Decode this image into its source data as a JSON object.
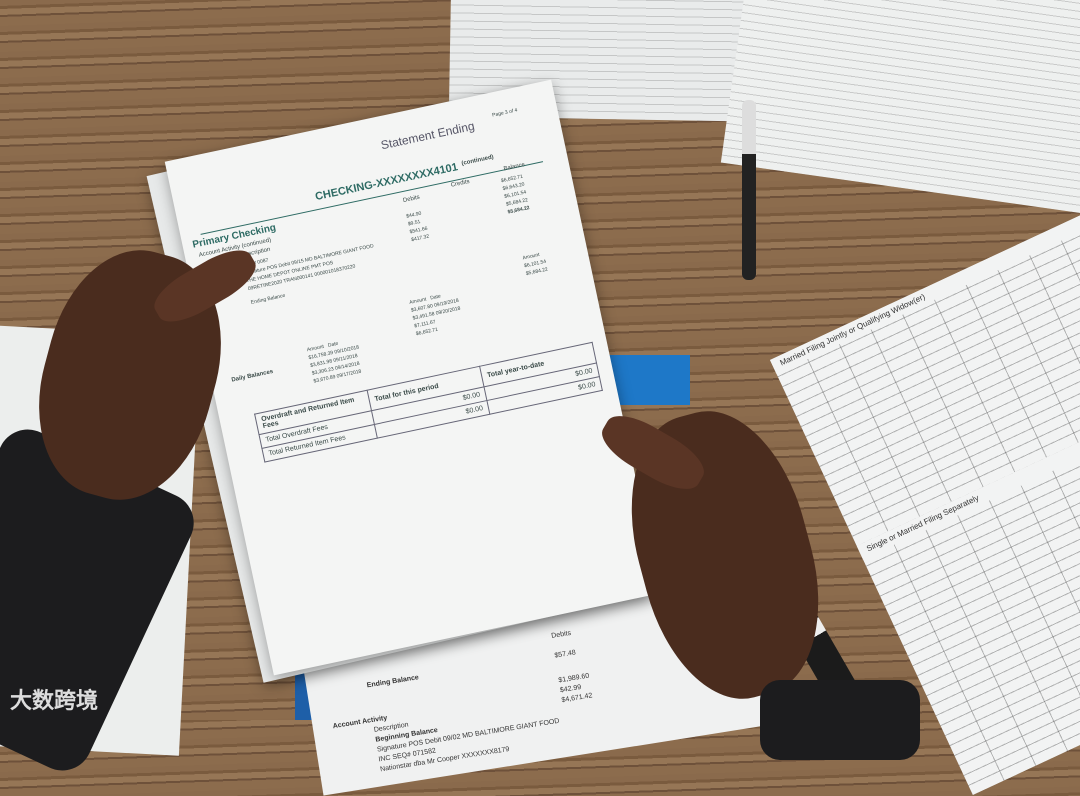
{
  "statement": {
    "title": "Statement Ending",
    "page": "Page 3 of 4",
    "account": "CHECKING-XXXXXXXX4101",
    "continued": "(continued)",
    "section": "Primary Checking",
    "activity": "Account Activity (continued)",
    "col_description": "Description",
    "col_debits": "Debits",
    "col_credits": "Credits",
    "col_balance": "Balance",
    "rows": [
      {
        "desc": "SEQ# 0087",
        "debit": "$44.90",
        "balance": "$6,652.71"
      },
      {
        "desc": "Signature POS Debit 09/15 MD BALTIMORE GIANT FOOD",
        "debit": "$9.51",
        "balance": "$6,643.20"
      },
      {
        "desc": "THE HOME DEPOT ONLINE PMT POS",
        "debit": "$541.66",
        "balance": "$6,101.54"
      },
      {
        "desc": "09RETIRE2020 TRAN000141 000001018370220",
        "debit": "$417.32",
        "balance": "$5,684.22"
      }
    ],
    "ending_balance_label": "Ending Balance",
    "ending_balance": "$5,684.22",
    "daily_balances_label": "Daily Balances",
    "amount_label": "Amount",
    "date_label": "Date",
    "daily_left": [
      {
        "amount": "$16,758.39",
        "date": "09/10/2018"
      },
      {
        "amount": "$3,831.98",
        "date": "09/11/2018"
      },
      {
        "amount": "$3,306.23",
        "date": "09/14/2018"
      },
      {
        "amount": "$3,670.89",
        "date": "09/17/2018"
      }
    ],
    "daily_mid": [
      {
        "amount": "$3,607.80",
        "date": "09/19/2018"
      },
      {
        "amount": "$3,491.58",
        "date": "09/20/2018"
      },
      {
        "amount": "$7,111.67",
        "date": ""
      },
      {
        "amount": "$6,652.71",
        "date": ""
      }
    ],
    "daily_right": [
      "$6,101.54",
      "$5,684.22"
    ],
    "fees_label": "Overdraft and Returned Item Fees",
    "total_period": "Total for this period",
    "total_ytd": "Total year-to-date",
    "overdraft_fees": "Total Overdraft Fees",
    "returned_fees": "Total Returned Item Fees",
    "zero": "$0.00"
  },
  "lower_statement": {
    "ending_balance": "Ending Balance",
    "debits_label": "Debits",
    "activity": "Account Activity",
    "description": "Description",
    "beginning": "Beginning Balance",
    "lines": [
      "Signature POS Debit 09/02 MD BALTIMORE GIANT FOOD",
      "INC SEQ# 071582",
      "Nationstar dba Mr Cooper XXXXXXX8179"
    ],
    "debits": [
      "$57.48",
      "$1,989.60",
      "$42.99",
      "$4,671.42"
    ]
  },
  "tax_table": {
    "header1": "Married Filing Jointly or Qualifying Widow(er)",
    "header2": "Single or Married Filing Separately"
  },
  "watermark": "大数跨境"
}
